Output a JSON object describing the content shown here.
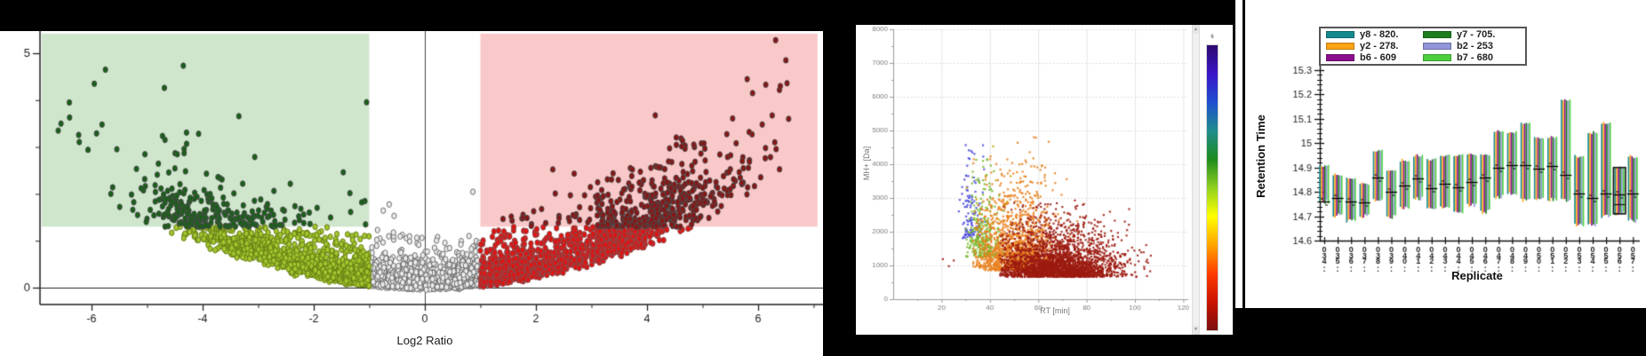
{
  "background_color": "#000000",
  "scrollbar": {
    "up_glyph": "▲",
    "down_glyph": "▼"
  },
  "chart_data": [
    {
      "id": "volcano",
      "type": "scatter",
      "xlabel": "Log2 Ratio",
      "xlim": [
        -6.93,
        7.17
      ],
      "ylim": [
        -0.36,
        5.48
      ],
      "x_major_ticks": [
        -6,
        -4,
        -2,
        0,
        2,
        4,
        6
      ],
      "x_minor_ticks": [
        -5,
        -3,
        -1,
        1,
        3,
        5,
        7
      ],
      "y_labeled_ticks": [
        0,
        5
      ],
      "y_minor_ticks": [
        1,
        2,
        3,
        4
      ],
      "significance_threshold_y": 1.3,
      "fold_change_thresholds": [
        -1,
        1
      ],
      "grid": false,
      "shaded_regions": [
        {
          "name": "down-regulated-zone",
          "x": [
            -6.9,
            -1
          ],
          "y": [
            1.3,
            5.42
          ],
          "color": "#cfe6cd"
        },
        {
          "name": "up-regulated-zone",
          "x": [
            1,
            7.07
          ],
          "y": [
            1.3,
            5.42
          ],
          "color": "#f9c9c9"
        }
      ],
      "point_classes": [
        {
          "name": "not-significant",
          "rule": "|log2|<1",
          "fill": "#ebebeb",
          "stroke": "#6b6b6b"
        },
        {
          "name": "down-low",
          "rule": "log2<=-1 & y<1.3",
          "fill": "#a3c52f",
          "stroke": "#647d12"
        },
        {
          "name": "down-significant",
          "rule": "log2<=-1 & y>=1.3",
          "fill": "#176117",
          "stroke": "#4a4a4a"
        },
        {
          "name": "up-low",
          "rule": "log2>=1 & y<1.3",
          "fill": "#e11212",
          "stroke": "#8a4a4a"
        },
        {
          "name": "up-significant",
          "rule": "log2>=1 & y>=1.3",
          "fill": "#8b1414",
          "stroke": "#4a4a4a"
        }
      ],
      "cloud": {
        "seed": 7,
        "n_core": 3600,
        "core_x_halfwidth": 5.2,
        "n_right_tail": 560,
        "n_left_tail": 150,
        "tail_x_min": 3.1,
        "tail_x_span": 3.5,
        "curve_coeff": 0.068,
        "curve_jitter": [
          0.8,
          0.4
        ],
        "up_noise_scale": 0.21,
        "marker_rx": 2.6,
        "marker_ry": 3.2
      },
      "outliers": [
        [
          -5.75,
          4.65
        ],
        [
          -5.95,
          4.35
        ],
        [
          -6.4,
          3.95
        ],
        [
          -6.55,
          3.5
        ],
        [
          -6.6,
          3.35
        ],
        [
          5.9,
          4.15
        ],
        [
          6.4,
          4.3
        ],
        [
          6.5,
          4.85
        ],
        [
          6.55,
          3.6
        ],
        [
          6.3,
          3.1
        ]
      ]
    },
    {
      "id": "mass-vs-rt",
      "type": "scatter",
      "xlabel": "RT [min]",
      "ylabel": "MH+ [Da]",
      "xlim": [
        0,
        122
      ],
      "ylim": [
        0,
        8000
      ],
      "x_ticks": [
        20,
        40,
        60,
        80,
        100,
        120
      ],
      "y_ticks": [
        0,
        1000,
        2000,
        3000,
        4000,
        5000,
        6000,
        7000,
        8000
      ],
      "grid": true,
      "colorbar": {
        "top_label": "6",
        "stops": [
          "#2d0a6e",
          "#3a14c8",
          "#1f4fd0",
          "#1f8c8c",
          "#1e8c1e",
          "#8fd11f",
          "#ffff00",
          "#ffa500",
          "#ff3c00",
          "#cc1400",
          "#7a0f0f"
        ]
      },
      "clusters": [
        {
          "name": "cluster-darkred",
          "color": "#9c1a10",
          "n": 2600,
          "rt_mean": 68,
          "rt_sd": 13,
          "rt_min": 44,
          "rt_max": 107,
          "mh_base": 660,
          "mh_exp": 480,
          "mh_max": 2950
        },
        {
          "name": "cluster-orange",
          "color": "#e8801e",
          "n": 1500,
          "rt_mean": 50,
          "rt_sd": 9,
          "rt_min": 33,
          "rt_max": 96,
          "mh_base": 850,
          "mh_exp": 800,
          "mh_max": 4850
        },
        {
          "name": "cluster-green",
          "color": "#79b82c",
          "n": 300,
          "rt_mean": 37,
          "rt_sd": 3.5,
          "rt_min": 30,
          "rt_max": 46,
          "mh_base": 1250,
          "mh_exp": 750,
          "mh_max": 4300
        },
        {
          "name": "cluster-blue",
          "color": "#4a4ae0",
          "n": 115,
          "rt_mean": 32.5,
          "rt_sd": 2.5,
          "rt_min": 27,
          "rt_max": 39,
          "mh_base": 1800,
          "mh_exp": 1000,
          "mh_max": 5150
        },
        {
          "name": "cluster-gold",
          "color": "#c8a300",
          "n": 12,
          "rt_mean": 40,
          "rt_sd": 6,
          "rt_min": 30,
          "rt_max": 52,
          "mh_base": 2200,
          "mh_exp": 1000,
          "mh_max": 4750
        }
      ],
      "extra_points": [
        {
          "rt": 20.5,
          "mh": 1190,
          "color": "#9c1a10"
        },
        {
          "rt": 25.0,
          "mh": 1150,
          "color": "#9c1a10"
        },
        {
          "rt": 23.0,
          "mh": 980,
          "color": "#9c1a10"
        }
      ],
      "seed": 11
    },
    {
      "id": "retention-time-replicates",
      "type": "bar-range",
      "xlabel": "Replicate",
      "ylabel": "Retention Time",
      "ylim": [
        14.6,
        15.3
      ],
      "y_major_step": 0.1,
      "y_minor_step": 0.02,
      "legend": [
        {
          "label": "y8 - 820.",
          "color": "#15898c"
        },
        {
          "label": "y2 - 278.",
          "color": "#ffa414"
        },
        {
          "label": "b6 - 609",
          "color": "#8c0f8c"
        },
        {
          "label": "y7 - 705.",
          "color": "#1d7d1d"
        },
        {
          "label": "b2 - 253",
          "color": "#9196d8"
        },
        {
          "label": "b7 - 680",
          "color": "#4ecf3e"
        }
      ],
      "categories": [
        "..034",
        "..035",
        "..036",
        "..037",
        "..038",
        "..039",
        "..040",
        "..041",
        "..042",
        "..043",
        "..044",
        "..045",
        "..046",
        "..047",
        "..048",
        "..049",
        "..050",
        "..051",
        "..052",
        "..053",
        "..054",
        "..055",
        "..056",
        "..057"
      ],
      "bars": [
        {
          "low": 14.76,
          "high": 14.91,
          "mean": 14.76
        },
        {
          "low": 14.7,
          "high": 14.87,
          "mean": 14.775
        },
        {
          "low": 14.685,
          "high": 14.86,
          "mean": 14.76
        },
        {
          "low": 14.7,
          "high": 14.835,
          "mean": 14.755
        },
        {
          "low": 14.765,
          "high": 14.97,
          "mean": 14.86
        },
        {
          "low": 14.7,
          "high": 14.89,
          "mean": 14.8
        },
        {
          "low": 14.735,
          "high": 14.93,
          "mean": 14.825
        },
        {
          "low": 14.775,
          "high": 14.95,
          "mean": 14.855
        },
        {
          "low": 14.735,
          "high": 14.935,
          "mean": 14.815
        },
        {
          "low": 14.74,
          "high": 14.95,
          "mean": 14.835
        },
        {
          "low": 14.72,
          "high": 14.95,
          "mean": 14.82
        },
        {
          "low": 14.75,
          "high": 14.955,
          "mean": 14.84
        },
        {
          "low": 14.72,
          "high": 14.955,
          "mean": 14.86
        },
        {
          "low": 14.78,
          "high": 15.05,
          "mean": 14.9
        },
        {
          "low": 14.795,
          "high": 15.045,
          "mean": 14.91
        },
        {
          "low": 14.77,
          "high": 15.085,
          "mean": 14.91
        },
        {
          "low": 14.77,
          "high": 15.025,
          "mean": 14.895
        },
        {
          "low": 14.77,
          "high": 15.025,
          "mean": 14.905
        },
        {
          "low": 14.77,
          "high": 15.18,
          "mean": 14.87
        },
        {
          "low": 14.67,
          "high": 14.945,
          "mean": 14.795
        },
        {
          "low": 14.67,
          "high": 15.045,
          "mean": 14.775
        },
        {
          "low": 14.7,
          "high": 15.085,
          "mean": 14.795
        },
        {
          "low": 14.71,
          "high": 14.9,
          "mean": 14.79,
          "extra_marker": 14.75,
          "selected": true
        },
        {
          "low": 14.685,
          "high": 14.945,
          "mean": 14.795
        }
      ],
      "selected_index": 22,
      "seed": 5
    }
  ]
}
